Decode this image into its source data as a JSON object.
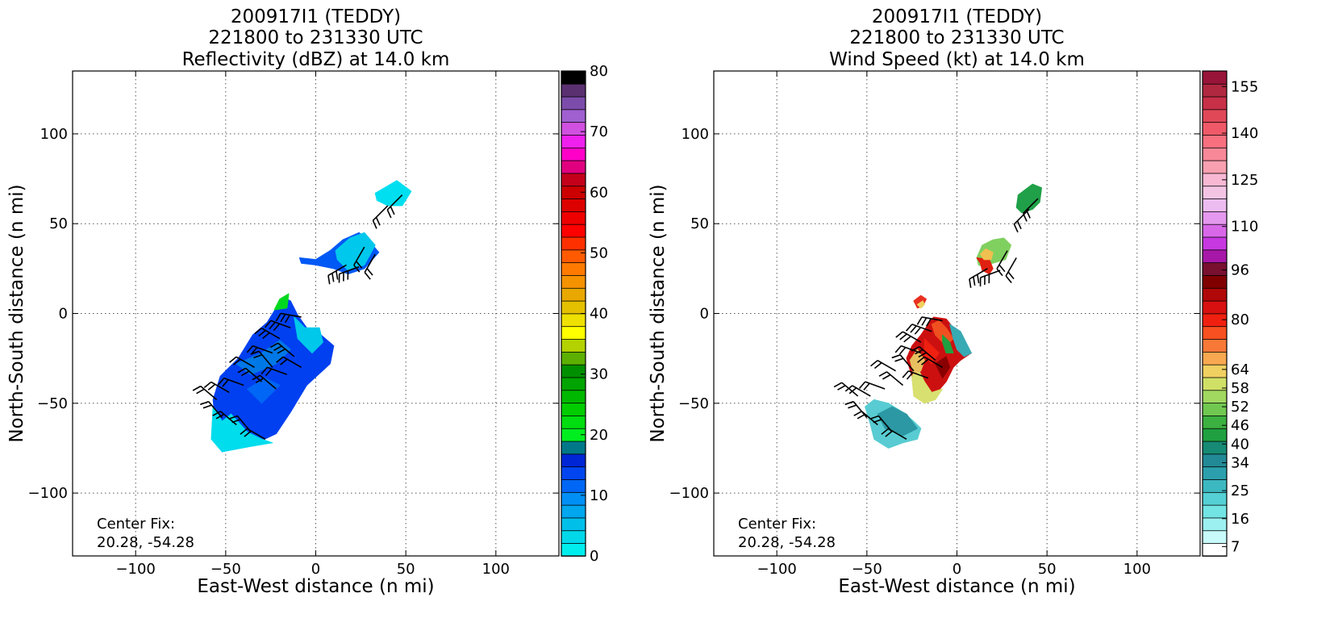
{
  "chart_data": [
    {
      "type": "heatmap",
      "title_lines": [
        "200917I1 (TEDDY)",
        "221800 to 231330 UTC",
        "Reflectivity (dBZ) at 14.0 km"
      ],
      "xlabel": "East-West distance (n mi)",
      "ylabel": "North-South distance (n mi)",
      "xlim": [
        -135,
        135
      ],
      "ylim": [
        -135,
        135
      ],
      "xticks": [
        -100,
        -50,
        0,
        50,
        100
      ],
      "yticks": [
        -100,
        -50,
        0,
        50,
        100
      ],
      "grid": true,
      "annotation": [
        "Center Fix:",
        "20.28, -54.28"
      ],
      "colorbar": {
        "min": 0,
        "max": 80,
        "tick_labels": [
          "0",
          "10",
          "20",
          "30",
          "40",
          "50",
          "60",
          "70",
          "80"
        ],
        "colors": [
          "#00eded",
          "#00d8ea",
          "#00c0ea",
          "#00a6ee",
          "#0090f5",
          "#0066f5",
          "#0045f0",
          "#0025d5",
          "#007888",
          "#00ee20",
          "#00dd10",
          "#00cc00",
          "#00b800",
          "#00a400",
          "#008f00",
          "#5db000",
          "#b4d200",
          "#ffff00",
          "#eee000",
          "#e4c000",
          "#e8a800",
          "#f59200",
          "#ff7a00",
          "#ff5a00",
          "#ff3000",
          "#ff0000",
          "#ee0000",
          "#dd0000",
          "#cc0000",
          "#c4001a",
          "#e0007f",
          "#ff00c8",
          "#ee20ee",
          "#d050e0",
          "#a060d0",
          "#7c4caa",
          "#5a3070",
          "#000000"
        ]
      },
      "regions": [
        {
          "poly": [
            [
              -57,
              -48
            ],
            [
              -53,
              -35
            ],
            [
              -43,
              -25
            ],
            [
              -35,
              -12
            ],
            [
              -27,
              -5
            ],
            [
              -22,
              3
            ],
            [
              -18,
              9
            ],
            [
              -14,
              7
            ],
            [
              -10,
              -1
            ],
            [
              -5,
              -8
            ],
            [
              3,
              -12
            ],
            [
              10,
              -18
            ],
            [
              8,
              -28
            ],
            [
              -5,
              -40
            ],
            [
              -14,
              -55
            ],
            [
              -22,
              -67
            ],
            [
              -37,
              -74
            ],
            [
              -52,
              -77
            ],
            [
              -57,
              -70
            ],
            [
              -56,
              -58
            ]
          ],
          "color": "#0040f0"
        },
        {
          "poly": [
            [
              -57,
              -52
            ],
            [
              -52,
              -60
            ],
            [
              -47,
              -56
            ],
            [
              -38,
              -66
            ],
            [
              -30,
              -70
            ],
            [
              -24,
              -72
            ],
            [
              -36,
              -74
            ],
            [
              -52,
              -77
            ],
            [
              -58,
              -70
            ]
          ],
          "color": "#00dded"
        },
        {
          "poly": [
            [
              -44,
              -28
            ],
            [
              -30,
              -22
            ],
            [
              -20,
              -15
            ],
            [
              -14,
              -20
            ],
            [
              -22,
              -28
            ],
            [
              -36,
              -34
            ]
          ],
          "color": "#0078e6"
        },
        {
          "poly": [
            [
              -38,
              -42
            ],
            [
              -28,
              -36
            ],
            [
              -20,
              -40
            ],
            [
              -30,
              -50
            ]
          ],
          "color": "#0066f5"
        },
        {
          "poly": [
            [
              -12,
              -2
            ],
            [
              -6,
              -8
            ],
            [
              2,
              -8
            ],
            [
              4,
              -16
            ],
            [
              -2,
              -22
            ],
            [
              -10,
              -14
            ]
          ],
          "color": "#00c8ea"
        },
        {
          "poly": [
            [
              -23,
              2
            ],
            [
              -20,
              8
            ],
            [
              -15,
              11
            ],
            [
              -16,
              3
            ]
          ],
          "color": "#00d820"
        },
        {
          "poly": [
            [
              -9,
              31
            ],
            [
              0,
              30
            ],
            [
              8,
              35
            ],
            [
              15,
              41
            ],
            [
              24,
              45
            ],
            [
              30,
              40
            ],
            [
              35,
              34
            ],
            [
              27,
              25
            ],
            [
              18,
              22
            ],
            [
              10,
              25
            ],
            [
              0,
              27
            ],
            [
              -8,
              28
            ]
          ],
          "color": "#0058f5"
        },
        {
          "poly": [
            [
              11,
              35
            ],
            [
              19,
              42
            ],
            [
              27,
              45
            ],
            [
              33,
              38
            ],
            [
              27,
              27
            ],
            [
              18,
              24
            ],
            [
              12,
              30
            ]
          ],
          "color": "#00c8ec"
        },
        {
          "poly": [
            [
              33,
              67
            ],
            [
              45,
              74
            ],
            [
              53,
              68
            ],
            [
              48,
              60
            ],
            [
              40,
              60
            ],
            [
              34,
              63
            ]
          ],
          "color": "#00dff0"
        }
      ]
    },
    {
      "type": "heatmap",
      "title_lines": [
        "200917I1 (TEDDY)",
        "221800 to 231330 UTC",
        "Wind Speed (kt) at 14.0 km"
      ],
      "xlabel": "East-West distance (n mi)",
      "ylabel": "North-South distance (n mi)",
      "xlim": [
        -135,
        135
      ],
      "ylim": [
        -135,
        135
      ],
      "xticks": [
        -100,
        -50,
        0,
        50,
        100
      ],
      "yticks": [
        -100,
        -50,
        0,
        50,
        100
      ],
      "grid": true,
      "annotation": [
        "Center Fix:",
        "20.28, -54.28"
      ],
      "colorbar": {
        "min": 4,
        "max": 160,
        "tick_labels": [
          {
            "value": 7,
            "label": "7"
          },
          {
            "value": 16,
            "label": "16"
          },
          {
            "value": 25,
            "label": "25"
          },
          {
            "value": 34,
            "label": "34"
          },
          {
            "value": 40,
            "label": "40"
          },
          {
            "value": 46,
            "label": "46"
          },
          {
            "value": 52,
            "label": "52"
          },
          {
            "value": 58,
            "label": "58"
          },
          {
            "value": 64,
            "label": "64"
          },
          {
            "value": 80,
            "label": "80"
          },
          {
            "value": 96,
            "label": "96"
          },
          {
            "value": 110,
            "label": "110"
          },
          {
            "value": 125,
            "label": "125"
          },
          {
            "value": 140,
            "label": "140"
          },
          {
            "value": 155,
            "label": "155"
          }
        ],
        "colors": [
          "#ffffff",
          "#c8fafa",
          "#9cf0f0",
          "#72e4e4",
          "#55d0d4",
          "#3cb8c0",
          "#2ba0ac",
          "#228a96",
          "#168a74",
          "#20a040",
          "#3cb040",
          "#70c850",
          "#a0d860",
          "#d0e066",
          "#f0d060",
          "#f8a850",
          "#f87838",
          "#f85020",
          "#f02010",
          "#d81010",
          "#b00808",
          "#800000",
          "#781030",
          "#a818a8",
          "#c838e0",
          "#d868e8",
          "#e498ee",
          "#ecbcf0",
          "#f4c4e4",
          "#f8b8d4",
          "#f8a0b0",
          "#f88898",
          "#f87080",
          "#f05a68",
          "#e04858",
          "#c83048",
          "#b02840",
          "#981438"
        ]
      },
      "regions": [
        {
          "poly": [
            [
              -51,
              -52
            ],
            [
              -48,
              -62
            ],
            [
              -46,
              -70
            ],
            [
              -38,
              -75
            ],
            [
              -30,
              -72
            ],
            [
              -22,
              -70
            ],
            [
              -20,
              -64
            ],
            [
              -24,
              -60
            ],
            [
              -30,
              -55
            ],
            [
              -38,
              -50
            ],
            [
              -46,
              -48
            ]
          ],
          "color": "#58ccd2"
        },
        {
          "poly": [
            [
              -44,
              -56
            ],
            [
              -36,
              -52
            ],
            [
              -28,
              -56
            ],
            [
              -22,
              -64
            ],
            [
              -30,
              -68
            ],
            [
              -40,
              -64
            ]
          ],
          "color": "#2c98a4"
        },
        {
          "poly": [
            [
              -25,
              -35
            ],
            [
              -28,
              -25
            ],
            [
              -25,
              -18
            ],
            [
              -20,
              -12
            ],
            [
              -16,
              -6
            ],
            [
              -13,
              -2
            ],
            [
              -6,
              -3
            ],
            [
              -2,
              -8
            ],
            [
              1,
              -10
            ],
            [
              4,
              -16
            ],
            [
              8,
              -22
            ],
            [
              2,
              -26
            ],
            [
              -2,
              -30
            ],
            [
              -6,
              -38
            ],
            [
              -12,
              -45
            ],
            [
              -18,
              -48
            ],
            [
              -24,
              -44
            ]
          ],
          "color": "#cc1010"
        },
        {
          "poly": [
            [
              -25,
              -35
            ],
            [
              -22,
              -30
            ],
            [
              -18,
              -38
            ],
            [
              -14,
              -44
            ],
            [
              -8,
              -42
            ],
            [
              -12,
              -48
            ],
            [
              -18,
              -50
            ],
            [
              -24,
              -46
            ]
          ],
          "color": "#d8e070"
        },
        {
          "poly": [
            [
              -26,
              -26
            ],
            [
              -22,
              -20
            ],
            [
              -18,
              -26
            ],
            [
              -20,
              -32
            ],
            [
              -24,
              -34
            ]
          ],
          "color": "#e8c060"
        },
        {
          "poly": [
            [
              -14,
              -6
            ],
            [
              -12,
              -12
            ],
            [
              -6,
              -18
            ],
            [
              -2,
              -14
            ],
            [
              -6,
              -8
            ],
            [
              -10,
              -4
            ]
          ],
          "color": "#f05020"
        },
        {
          "poly": [
            [
              -18,
              -14
            ],
            [
              -14,
              -18
            ],
            [
              -10,
              -22
            ],
            [
              -14,
              -28
            ],
            [
              -18,
              -24
            ]
          ],
          "color": "#ee2010"
        },
        {
          "poly": [
            [
              -12,
              -28
            ],
            [
              -6,
              -24
            ],
            [
              -4,
              -30
            ],
            [
              -8,
              -36
            ]
          ],
          "color": "#8a0000"
        },
        {
          "poly": [
            [
              -4,
              -6
            ],
            [
              2,
              -10
            ],
            [
              6,
              -18
            ],
            [
              8,
              -22
            ],
            [
              4,
              -24
            ],
            [
              0,
              -20
            ],
            [
              -2,
              -14
            ]
          ],
          "color": "#38aab4"
        },
        {
          "poly": [
            [
              -8,
              -12
            ],
            [
              -4,
              -16
            ],
            [
              -2,
              -22
            ],
            [
              -6,
              -22
            ],
            [
              -8,
              -16
            ]
          ],
          "color": "#20a040"
        },
        {
          "poly": [
            [
              -24,
              7
            ],
            [
              -20,
              10
            ],
            [
              -17,
              8
            ],
            [
              -19,
              4
            ],
            [
              -22,
              3
            ]
          ],
          "color": "#e83020"
        },
        {
          "poly": [
            [
              -22,
              5
            ],
            [
              -19,
              7
            ],
            [
              -18,
              5
            ],
            [
              -20,
              3
            ]
          ],
          "color": "#f0d060"
        },
        {
          "poly": [
            [
              11,
              31
            ],
            [
              14,
              38
            ],
            [
              20,
              41
            ],
            [
              26,
              42
            ],
            [
              30,
              38
            ],
            [
              27,
              30
            ],
            [
              20,
              28
            ],
            [
              15,
              26
            ],
            [
              12,
              27
            ]
          ],
          "color": "#80d060"
        },
        {
          "poly": [
            [
              11,
              31
            ],
            [
              13,
              28
            ],
            [
              14,
              24
            ],
            [
              18,
              22
            ],
            [
              20,
              25
            ],
            [
              18,
              30
            ]
          ],
          "color": "#e02010"
        },
        {
          "poly": [
            [
              13,
              33
            ],
            [
              16,
              36
            ],
            [
              20,
              34
            ],
            [
              19,
              30
            ],
            [
              15,
              30
            ]
          ],
          "color": "#f0c050"
        },
        {
          "poly": [
            [
              34,
              66
            ],
            [
              42,
              72
            ],
            [
              47,
              70
            ],
            [
              46,
              62
            ],
            [
              42,
              58
            ],
            [
              36,
              56
            ],
            [
              33,
              59
            ]
          ],
          "color": "#20a048"
        }
      ]
    }
  ]
}
